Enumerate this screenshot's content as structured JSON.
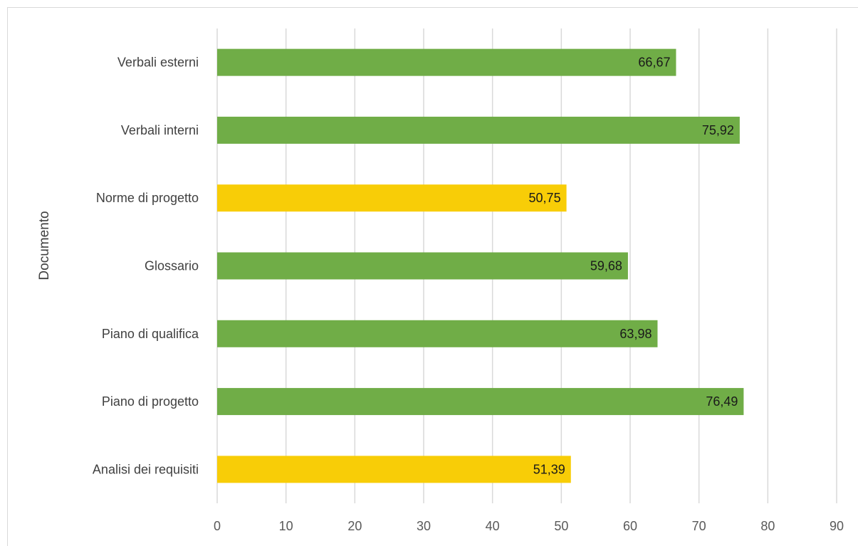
{
  "chart_data": {
    "type": "bar",
    "orientation": "horizontal",
    "ylabel": "Documento",
    "categories": [
      "Verbali esterni",
      "Verbali interni",
      "Norme di progetto",
      "Glossario",
      "Piano di qualifica",
      "Piano di progetto",
      "Analisi dei requisiti"
    ],
    "values": [
      66.67,
      75.92,
      50.75,
      59.68,
      63.98,
      76.49,
      51.39
    ],
    "value_labels": [
      "66,67",
      "75,92",
      "50,75",
      "59,68",
      "63,98",
      "76,49",
      "51,39"
    ],
    "bar_colors": [
      "#70ad47",
      "#70ad47",
      "#f8cd07",
      "#70ad47",
      "#70ad47",
      "#70ad47",
      "#f8cd07"
    ],
    "xlim": [
      0,
      90
    ],
    "x_ticks": [
      "0",
      "10",
      "20",
      "30",
      "40",
      "50",
      "60",
      "70",
      "80",
      "90"
    ],
    "grid": true,
    "legend": "none"
  }
}
